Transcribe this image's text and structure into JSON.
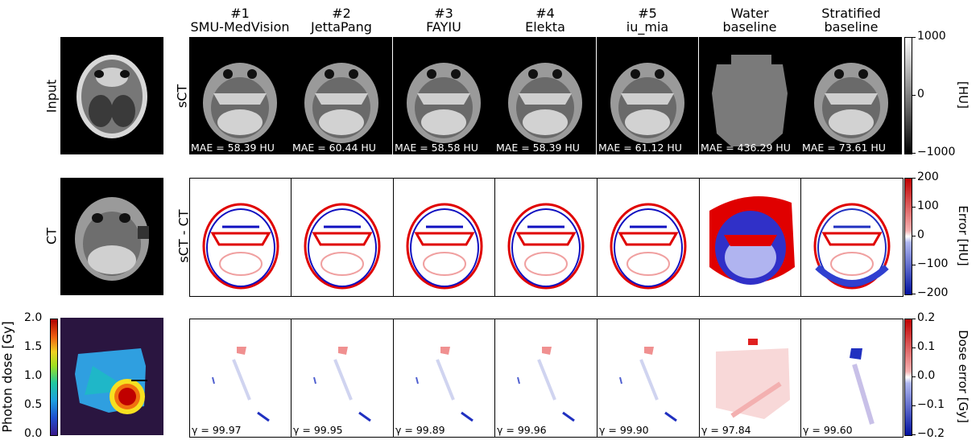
{
  "columns": [
    {
      "rank": "#1",
      "name": "SMU-MedVision",
      "mae": "MAE = 58.39 HU",
      "gamma": "γ = 99.97"
    },
    {
      "rank": "#2",
      "name": "JettaPang",
      "mae": "MAE = 60.44 HU",
      "gamma": "γ = 99.95"
    },
    {
      "rank": "#3",
      "name": "FAYIU",
      "mae": "MAE = 58.58 HU",
      "gamma": "γ = 99.89"
    },
    {
      "rank": "#4",
      "name": "Elekta",
      "mae": "MAE = 58.39 HU",
      "gamma": "γ = 99.96"
    },
    {
      "rank": "#5",
      "name": "iu_mia",
      "mae": "MAE = 61.12 HU",
      "gamma": "γ = 99.90"
    },
    {
      "rank": "Water",
      "name": "baseline",
      "mae": "MAE = 436.29 HU",
      "gamma": "γ = 97.84"
    },
    {
      "rank": "Stratified",
      "name": "baseline",
      "mae": "MAE = 73.61 HU",
      "gamma": "γ = 99.60"
    }
  ],
  "left_labels": {
    "input": "Input",
    "ct": "CT",
    "photon_dose": "Photon dose [Gy]"
  },
  "row_labels": {
    "sct": "sCT",
    "diff": "sCT - CT"
  },
  "dose_colorbar": {
    "ticks": [
      "2.0",
      "1.5",
      "1.0",
      "0.5",
      "0.0"
    ]
  },
  "colorbars": [
    {
      "label": "[HU]",
      "ticks": [
        "1000",
        "0",
        "−1000"
      ]
    },
    {
      "label": "Error [HU]",
      "ticks": [
        "200",
        "100",
        "0",
        "−100",
        "−200"
      ]
    },
    {
      "label": "Dose error [Gy]",
      "ticks": [
        "0.2",
        "0.1",
        "0.0",
        "−0.1",
        "−0.2"
      ]
    }
  ],
  "colors": {
    "error_positive": "#e00000",
    "error_negative": "#1010c0",
    "background": "#ffffff"
  }
}
